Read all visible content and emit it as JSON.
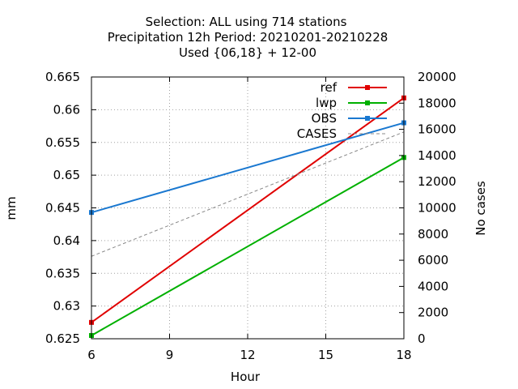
{
  "chart_data": {
    "type": "line",
    "title_lines": [
      "Selection: ALL using   714 stations",
      "Precipitation 12h   Period: 20210201-20210228",
      "Used {06,18} + 12-00"
    ],
    "xlabel": "Hour",
    "ylabel": "mm",
    "y2label": "No cases",
    "x": [
      6,
      18
    ],
    "xlim": [
      6,
      18
    ],
    "ylim": [
      0.625,
      0.665
    ],
    "y2lim": [
      0,
      20000
    ],
    "xticks": [
      "6",
      "9",
      "12",
      "15",
      "18"
    ],
    "yticks": [
      "0.625",
      "0.63",
      "0.635",
      "0.64",
      "0.645",
      "0.65",
      "0.655",
      "0.66",
      "0.665"
    ],
    "y2ticks": [
      "0",
      "2000",
      "4000",
      "6000",
      "8000",
      "10000",
      "12000",
      "14000",
      "16000",
      "18000",
      "20000"
    ],
    "grid": true,
    "legend_position": "top-right",
    "series": [
      {
        "name": "ref",
        "axis": "y",
        "color": "#e00000",
        "style": "line-points",
        "values": [
          0.6275,
          0.6618
        ]
      },
      {
        "name": "lwp",
        "axis": "y",
        "color": "#00b000",
        "style": "line-points",
        "values": [
          0.6255,
          0.6527
        ]
      },
      {
        "name": "OBS",
        "axis": "y",
        "color": "#1a78d0",
        "style": "line-points",
        "values": [
          0.6443,
          0.658
        ]
      },
      {
        "name": "CASES",
        "axis": "y2",
        "color": "#888888",
        "style": "dashed",
        "values": [
          6300,
          15800
        ]
      }
    ]
  }
}
